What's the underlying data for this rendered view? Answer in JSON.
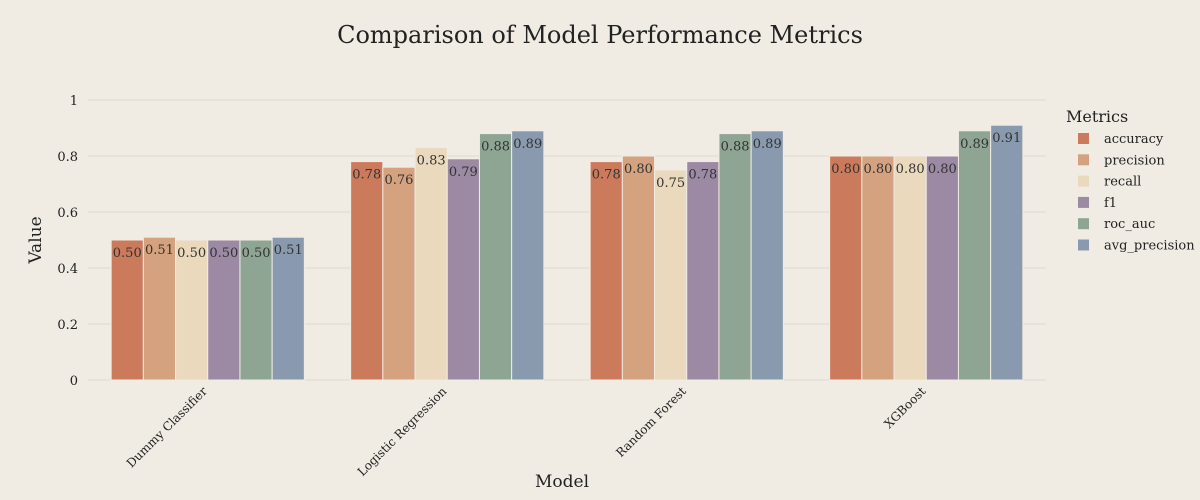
{
  "chart_data": {
    "type": "bar",
    "title": "Comparison of Model Performance Metrics",
    "xlabel": "Model",
    "ylabel": "Value",
    "ylim": [
      0,
      1
    ],
    "yticks": [
      "0",
      "0.2",
      "0.4",
      "0.6",
      "0.8",
      "1"
    ],
    "ytick_values": [
      0,
      0.2,
      0.4,
      0.6,
      0.8,
      1
    ],
    "grid": true,
    "legend_title": "Metrics",
    "legend_position": "right",
    "categories": [
      "Dummy Classifier",
      "Logistic Regression",
      "Random Forest",
      "XGBoost"
    ],
    "series": [
      {
        "name": "accuracy",
        "color": "#cb7a5c",
        "values": [
          0.5,
          0.78,
          0.78,
          0.8
        ],
        "labels": [
          "0.50",
          "0.78",
          "0.78",
          "0.80"
        ]
      },
      {
        "name": "precision",
        "color": "#d5a27f",
        "values": [
          0.51,
          0.76,
          0.8,
          0.8
        ],
        "labels": [
          "0.51",
          "0.76",
          "0.80",
          "0.80"
        ]
      },
      {
        "name": "recall",
        "color": "#ead9bc",
        "values": [
          0.5,
          0.83,
          0.75,
          0.8
        ],
        "labels": [
          "0.50",
          "0.83",
          "0.75",
          "0.80"
        ]
      },
      {
        "name": "f1",
        "color": "#9c89a3",
        "values": [
          0.5,
          0.79,
          0.78,
          0.8
        ],
        "labels": [
          "0.50",
          "0.79",
          "0.78",
          "0.80"
        ]
      },
      {
        "name": "roc_auc",
        "color": "#8fa593",
        "values": [
          0.5,
          0.88,
          0.88,
          0.89
        ],
        "labels": [
          "0.50",
          "0.88",
          "0.88",
          "0.89"
        ]
      },
      {
        "name": "avg_precision",
        "color": "#899aae",
        "values": [
          0.51,
          0.89,
          0.89,
          0.91
        ],
        "labels": [
          "0.51",
          "0.89",
          "0.89",
          "0.91"
        ]
      }
    ]
  }
}
